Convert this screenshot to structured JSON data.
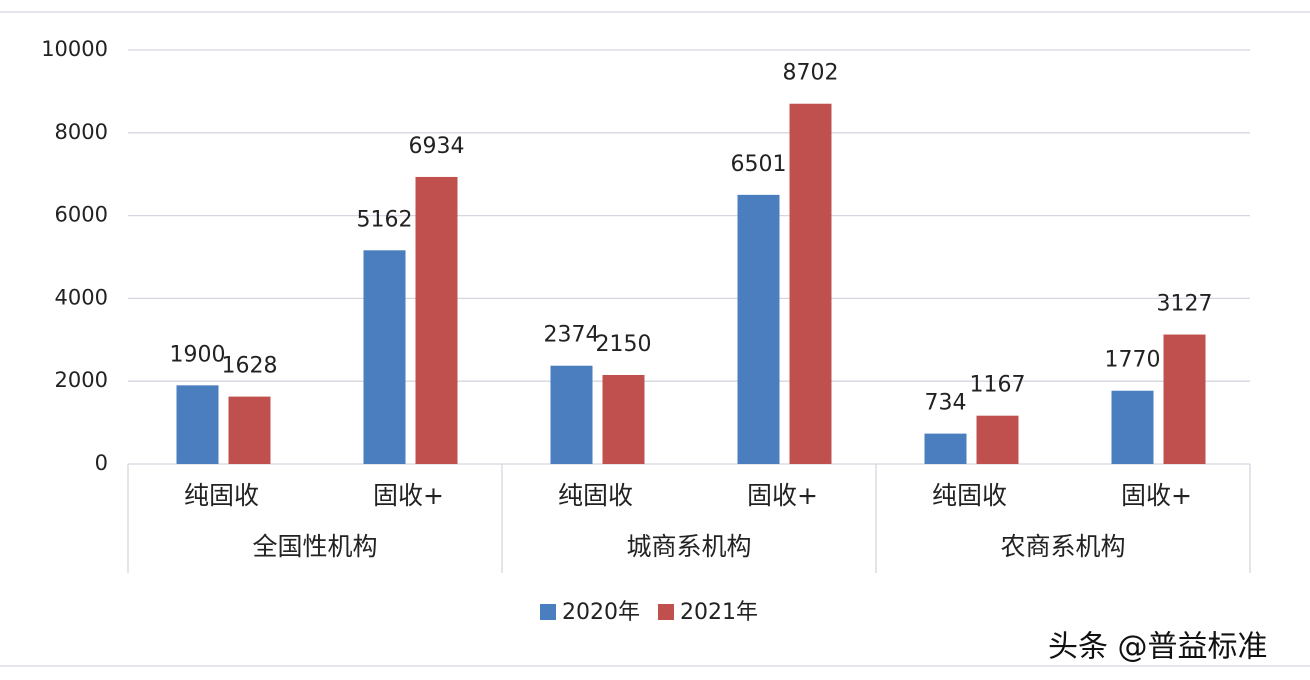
{
  "chart_data": {
    "type": "bar",
    "categories": [
      "纯固收",
      "固收+",
      "纯固收",
      "固收+",
      "纯固收",
      "固收+"
    ],
    "groups": [
      "全国性机构",
      "城商系机构",
      "农商系机构"
    ],
    "series": [
      {
        "name": "2020年",
        "color": "#4a7ebf",
        "values": [
          1900,
          5162,
          2374,
          6501,
          734,
          1770
        ]
      },
      {
        "name": "2021年",
        "color": "#c0504d",
        "values": [
          1628,
          6934,
          2150,
          8702,
          1167,
          3127
        ]
      }
    ],
    "ylim": [
      0,
      10000
    ],
    "yticks": [
      0,
      2000,
      4000,
      6000,
      8000,
      10000
    ],
    "grid": true,
    "legend": "bottom",
    "watermark": "头条 @普益标准"
  }
}
